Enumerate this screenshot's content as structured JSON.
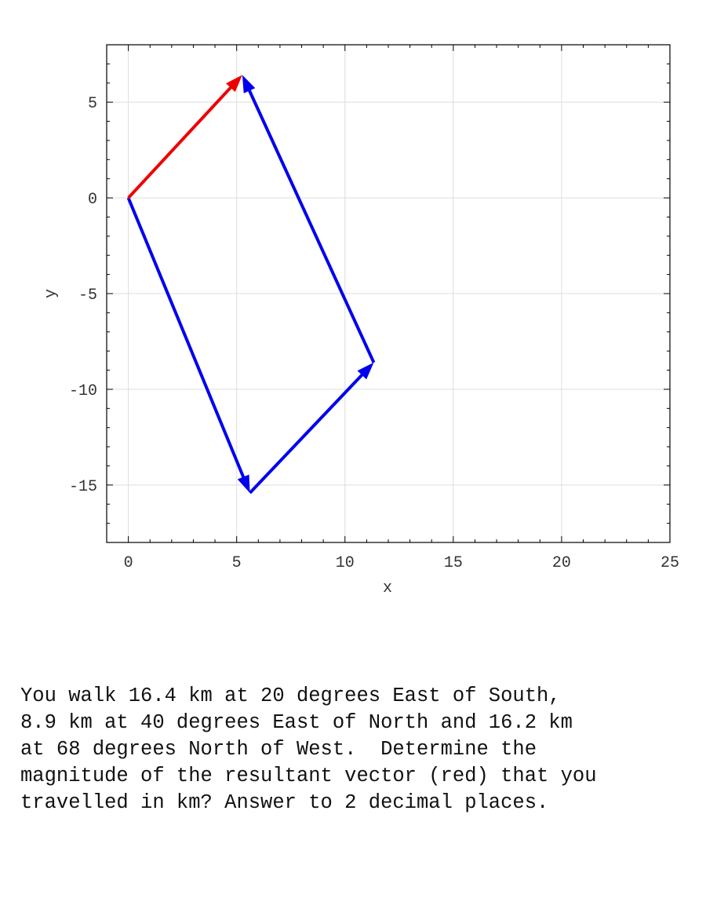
{
  "chart_data": {
    "type": "vector",
    "xlabel": "x",
    "ylabel": "y",
    "xlim": [
      -1,
      25
    ],
    "ylim": [
      -18,
      8
    ],
    "x_ticks": [
      "0",
      "5",
      "10",
      "15",
      "20",
      "25"
    ],
    "x_tick_values": [
      0,
      5,
      10,
      15,
      20,
      25
    ],
    "y_ticks": [
      "5",
      "0",
      "-5",
      "-10",
      "-15"
    ],
    "y_tick_values": [
      5,
      0,
      -5,
      -10,
      -15
    ],
    "grid": true,
    "colors": {
      "path": "#0000ee",
      "resultant": "#ee0000",
      "grid": "#dddddd"
    },
    "vectors": [
      {
        "role": "leg",
        "from": [
          0,
          0
        ],
        "to": [
          5.61,
          -15.41
        ],
        "color": "#0000ee"
      },
      {
        "role": "leg",
        "from": [
          5.61,
          -15.41
        ],
        "to": [
          11.33,
          -8.6
        ],
        "color": "#0000ee"
      },
      {
        "role": "leg",
        "from": [
          11.33,
          -8.6
        ],
        "to": [
          5.26,
          6.42
        ],
        "color": "#0000ee"
      },
      {
        "role": "resultant",
        "from": [
          0,
          0
        ],
        "to": [
          5.26,
          6.42
        ],
        "color": "#ee0000"
      }
    ]
  },
  "question": {
    "lines": [
      "You walk 16.4 km at 20 degrees East of South,",
      "8.9 km at 40 degrees East of North and 16.2 km",
      "at 68 degrees North of West.  Determine the",
      "magnitude of the resultant vector (red) that you",
      "travelled in km? Answer to 2 decimal places."
    ]
  }
}
